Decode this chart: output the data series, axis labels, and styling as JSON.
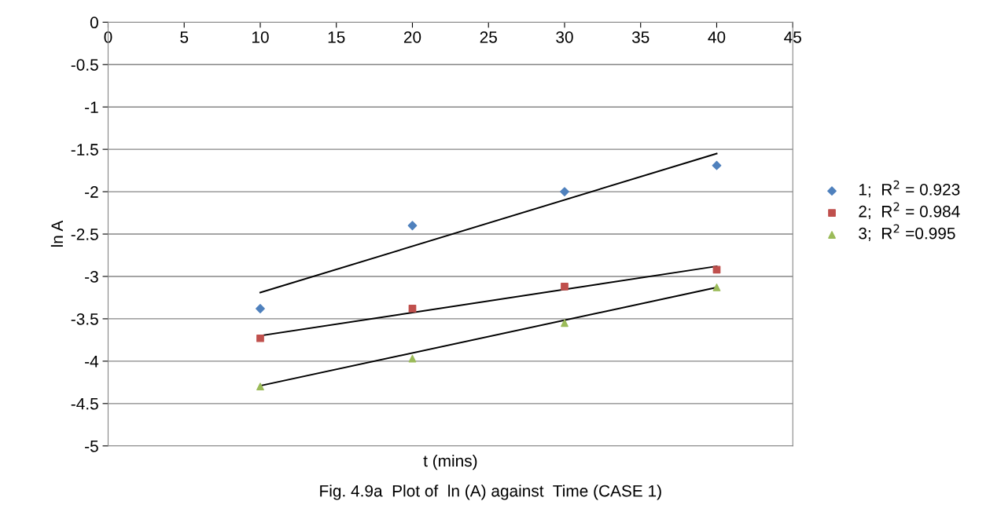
{
  "chart_data": {
    "type": "scatter",
    "xlabel": "t (mins)",
    "ylabel": "ln A",
    "xlim": [
      0,
      45
    ],
    "xticks": [
      0,
      5,
      10,
      15,
      20,
      25,
      30,
      35,
      40,
      45
    ],
    "ylim": [
      -5,
      0
    ],
    "yticks": [
      -5,
      -4.5,
      -4,
      -3.5,
      -3,
      -2.5,
      -2,
      -1.5,
      -1,
      -0.5,
      0
    ],
    "grid": "y",
    "legend": "right",
    "annotations": [
      "Fig. 4.9a  Plot of  ln (A) against  Time (CASE 1)"
    ],
    "series": [
      {
        "name": "1;  R$^{2}$ = 0.923",
        "marker": "diamond",
        "color": "#4f81bd",
        "x": [
          10,
          20,
          30,
          40
        ],
        "values": [
          -3.38,
          -2.4,
          -2.0,
          -1.69
        ]
      },
      {
        "name": "2;  R$^{2}$ = 0.984",
        "marker": "square",
        "color": "#c0504d",
        "x": [
          10,
          20,
          30,
          40
        ],
        "values": [
          -3.73,
          -3.38,
          -3.12,
          -2.92
        ]
      },
      {
        "name": "3;  R$^{2}$ =0.995",
        "marker": "triangle",
        "color": "#9bbb59",
        "x": [
          10,
          20,
          30,
          40
        ],
        "values": [
          -4.3,
          -3.97,
          -3.55,
          -3.13
        ]
      },
      {
        "type": "line",
        "marker": "none",
        "line_style": "solid",
        "color": "#000000",
        "x": [
          10,
          40
        ],
        "values": [
          -3.19,
          -1.55
        ]
      },
      {
        "type": "line",
        "marker": "none",
        "line_style": "solid",
        "color": "#000000",
        "x": [
          10,
          40
        ],
        "values": [
          -3.7,
          -2.88
        ]
      },
      {
        "type": "line",
        "marker": "none",
        "line_style": "solid",
        "color": "#000000",
        "x": [
          10,
          40
        ],
        "values": [
          -4.29,
          -3.13
        ]
      }
    ]
  }
}
